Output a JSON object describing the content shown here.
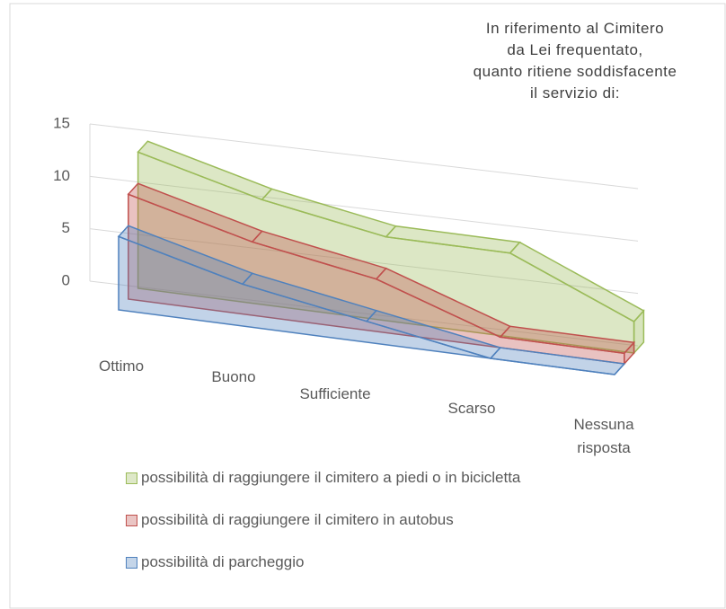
{
  "chart_data": {
    "type": "area3d",
    "title": [
      "In riferimento al Cimitero",
      "da Lei frequentato,",
      "quanto ritiene soddisfacente",
      "il servizio di:"
    ],
    "categories": [
      "Ottimo",
      "Buono",
      "Sufficiente",
      "Scarso",
      "Nessuna risposta"
    ],
    "ylim": [
      0,
      15
    ],
    "yticks": [
      0,
      5,
      10,
      15
    ],
    "grid": true,
    "series": [
      {
        "name": "possibilità di raggiungere il cimitero a piedi o in bicicletta",
        "color": "#9bbb59",
        "values": [
          13,
          10,
          8,
          8,
          3
        ]
      },
      {
        "name": "possibilità di raggiungere il cimitero in autobus",
        "color": "#c0504d",
        "values": [
          10,
          7,
          5,
          1,
          1
        ]
      },
      {
        "name": "possibilità di parcheggio",
        "color": "#4f81bd",
        "values": [
          7,
          4,
          2,
          0,
          0
        ]
      }
    ]
  }
}
